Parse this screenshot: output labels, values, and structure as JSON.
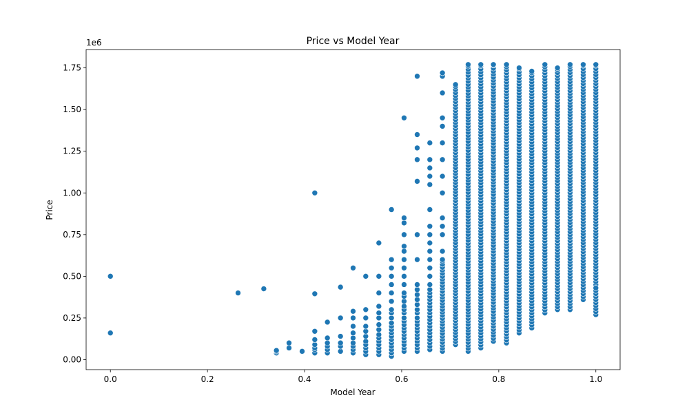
{
  "chart_data": {
    "type": "scatter",
    "title": "Price vs Model Year",
    "xlabel": "Model Year",
    "ylabel": "Price",
    "y_offset_label": "1e6",
    "xlim": [
      -0.05,
      1.05
    ],
    "ylim": [
      -0.06,
      1.86
    ],
    "x_ticks": [
      0.0,
      0.2,
      0.4,
      0.6,
      0.8,
      1.0
    ],
    "x_tick_labels": [
      "0.0",
      "0.2",
      "0.4",
      "0.6",
      "0.8",
      "1.0"
    ],
    "y_ticks": [
      0.0,
      0.25,
      0.5,
      0.75,
      1.0,
      1.25,
      1.5,
      1.75
    ],
    "y_tick_labels": [
      "0.00",
      "0.25",
      "0.50",
      "0.75",
      "1.00",
      "1.25",
      "1.50",
      "1.75"
    ],
    "grid": false,
    "marker_color": "#1f77b4",
    "marker_edge_color": "#ffffff",
    "columns": [
      {
        "x": 0.0,
        "y": [
          0.16,
          0.5
        ]
      },
      {
        "x": 0.263,
        "y": [
          0.4
        ]
      },
      {
        "x": 0.316,
        "y": [
          0.425
        ]
      },
      {
        "x": 0.342,
        "y": [
          0.04,
          0.05,
          0.055
        ]
      },
      {
        "x": 0.368,
        "y": [
          0.07,
          0.1
        ]
      },
      {
        "x": 0.395,
        "y": [
          0.05
        ]
      },
      {
        "x": 0.421,
        "y": [
          0.04,
          0.06,
          0.07,
          0.09,
          0.12,
          0.17,
          0.395,
          1.0
        ]
      },
      {
        "x": 0.447,
        "y": [
          0.04,
          0.06,
          0.08,
          0.1,
          0.13,
          0.225
        ]
      },
      {
        "x": 0.474,
        "y": [
          0.05,
          0.08,
          0.1,
          0.14,
          0.25,
          0.435
        ]
      },
      {
        "x": 0.5,
        "y": [
          0.04,
          0.06,
          0.08,
          0.1,
          0.13,
          0.16,
          0.2,
          0.25,
          0.29,
          0.55
        ]
      },
      {
        "x": 0.526,
        "y": [
          0.03,
          0.05,
          0.07,
          0.09,
          0.11,
          0.14,
          0.17,
          0.2,
          0.25,
          0.3,
          0.5
        ]
      },
      {
        "x": 0.553,
        "y": [
          0.03,
          0.05,
          0.07,
          0.09,
          0.11,
          0.13,
          0.15,
          0.18,
          0.21,
          0.25,
          0.28,
          0.32,
          0.4,
          0.5,
          0.7
        ]
      },
      {
        "x": 0.579,
        "y": [
          0.02,
          0.04,
          0.06,
          0.08,
          0.1,
          0.12,
          0.14,
          0.16,
          0.18,
          0.2,
          0.22,
          0.25,
          0.28,
          0.3,
          0.35,
          0.4,
          0.45,
          0.5,
          0.55,
          0.6,
          0.9
        ]
      },
      {
        "x": 0.605,
        "y": [
          0.05,
          0.07,
          0.09,
          0.11,
          0.13,
          0.15,
          0.17,
          0.19,
          0.21,
          0.23,
          0.25,
          0.28,
          0.3,
          0.32,
          0.35,
          0.38,
          0.4,
          0.45,
          0.5,
          0.55,
          0.6,
          0.65,
          0.68,
          0.75,
          0.82,
          0.85,
          1.45
        ]
      },
      {
        "x": 0.632,
        "y": [
          0.05,
          0.07,
          0.09,
          0.11,
          0.13,
          0.15,
          0.17,
          0.19,
          0.21,
          0.23,
          0.25,
          0.28,
          0.3,
          0.33,
          0.36,
          0.39,
          0.42,
          0.45,
          0.6,
          0.75,
          1.07,
          1.2,
          1.27,
          1.35,
          1.7
        ]
      },
      {
        "x": 0.658,
        "y": [
          0.06,
          0.08,
          0.1,
          0.12,
          0.14,
          0.16,
          0.18,
          0.2,
          0.22,
          0.24,
          0.26,
          0.28,
          0.3,
          0.32,
          0.34,
          0.36,
          0.38,
          0.4,
          0.42,
          0.45,
          0.5,
          0.55,
          0.6,
          0.65,
          0.7,
          0.75,
          0.8,
          0.9,
          1.05,
          1.1,
          1.15,
          1.2,
          1.3
        ]
      }
    ],
    "column_ranges": [
      {
        "x": 0.684,
        "min": 0.05,
        "max": 0.6,
        "extra": [
          0.65,
          0.75,
          0.8,
          0.85,
          1.0,
          1.1,
          1.2,
          1.3,
          1.4,
          1.45,
          1.6,
          1.7,
          1.72
        ]
      },
      {
        "x": 0.711,
        "min": 0.09,
        "max": 1.65,
        "extra": []
      },
      {
        "x": 0.737,
        "min": 0.05,
        "max": 1.77,
        "extra": []
      },
      {
        "x": 0.763,
        "min": 0.07,
        "max": 1.77,
        "extra": []
      },
      {
        "x": 0.789,
        "min": 0.11,
        "max": 1.77,
        "extra": []
      },
      {
        "x": 0.816,
        "min": 0.1,
        "max": 1.77,
        "extra": []
      },
      {
        "x": 0.842,
        "min": 0.16,
        "max": 1.75,
        "extra": []
      },
      {
        "x": 0.868,
        "min": 0.19,
        "max": 1.73,
        "extra": []
      },
      {
        "x": 0.895,
        "min": 0.28,
        "max": 1.77,
        "extra": []
      },
      {
        "x": 0.921,
        "min": 0.3,
        "max": 1.75,
        "extra": []
      },
      {
        "x": 0.947,
        "min": 0.3,
        "max": 1.77,
        "extra": []
      },
      {
        "x": 0.974,
        "min": 0.36,
        "max": 1.77,
        "extra": []
      },
      {
        "x": 1.0,
        "min": 0.27,
        "max": 1.77,
        "extra": [
          0.43
        ]
      }
    ]
  }
}
